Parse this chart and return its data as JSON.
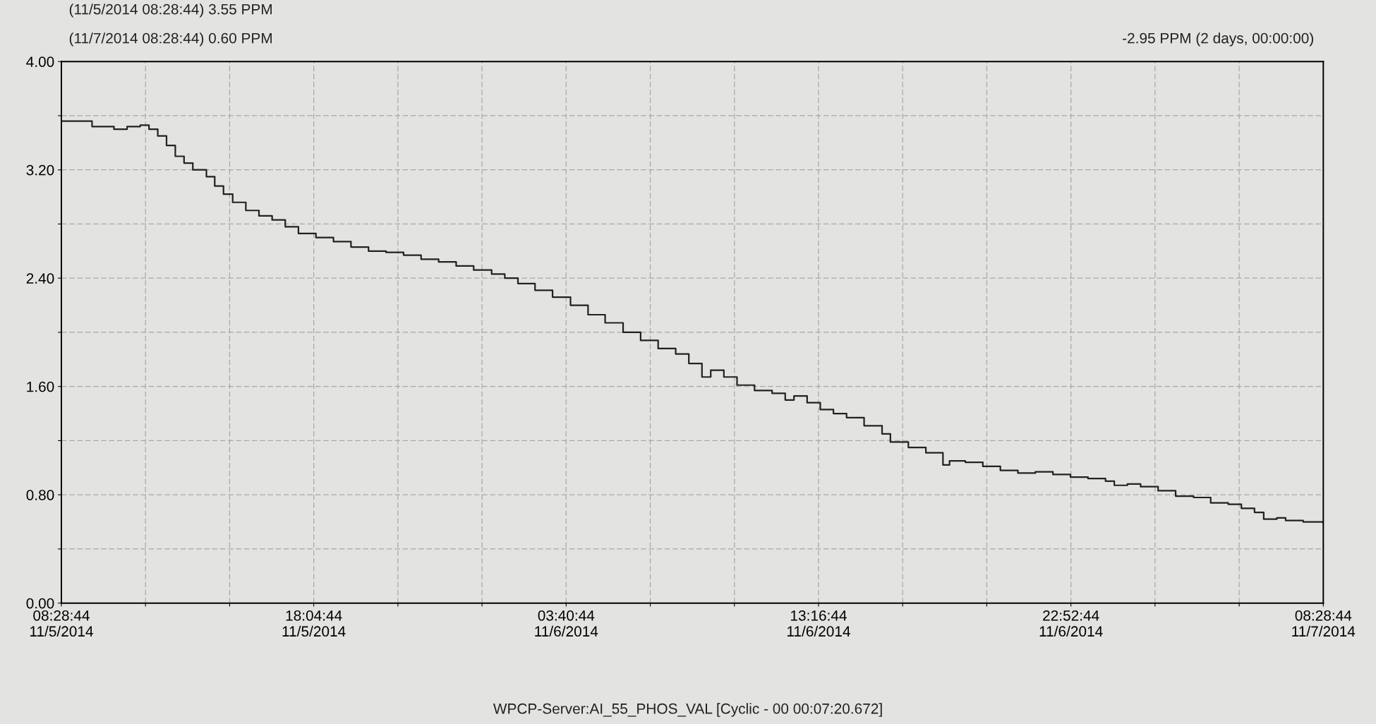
{
  "chart_data": {
    "type": "step",
    "color": "#222222",
    "x": [
      "2014-11-05T08:28",
      "2014-11-05T09:28",
      "2014-11-05T09:38",
      "2014-11-05T10:28",
      "2014-11-05T10:58",
      "2014-11-05T11:28",
      "2014-11-05T11:48",
      "2014-11-05T12:08",
      "2014-11-05T12:28",
      "2014-11-05T12:48",
      "2014-11-05T13:08",
      "2014-11-05T13:28",
      "2014-11-05T13:59",
      "2014-11-05T14:18",
      "2014-11-05T14:38",
      "2014-11-05T14:59",
      "2014-11-05T15:29",
      "2014-11-05T15:59",
      "2014-11-05T16:29",
      "2014-11-05T16:59",
      "2014-11-05T17:29",
      "2014-11-05T18:09",
      "2014-11-05T18:49",
      "2014-11-05T19:29",
      "2014-11-05T20:09",
      "2014-11-05T20:49",
      "2014-11-05T21:29",
      "2014-11-05T22:09",
      "2014-11-05T22:49",
      "2014-11-05T23:29",
      "2014-11-06T00:09",
      "2014-11-06T00:50",
      "2014-11-06T01:20",
      "2014-11-06T01:50",
      "2014-11-06T02:29",
      "2014-11-06T03:09",
      "2014-11-06T03:50",
      "2014-11-06T04:30",
      "2014-11-06T05:09",
      "2014-11-06T05:50",
      "2014-11-06T06:30",
      "2014-11-06T07:10",
      "2014-11-06T07:50",
      "2014-11-06T08:20",
      "2014-11-06T08:50",
      "2014-11-06T09:10",
      "2014-11-06T09:40",
      "2014-11-06T10:10",
      "2014-11-06T10:50",
      "2014-11-06T11:30",
      "2014-11-06T12:00",
      "2014-11-06T12:20",
      "2014-11-06T12:50",
      "2014-11-06T13:20",
      "2014-11-06T13:50",
      "2014-11-06T14:20",
      "2014-11-06T15:00",
      "2014-11-06T15:41",
      "2014-11-06T16:00",
      "2014-11-06T16:41",
      "2014-11-06T17:21",
      "2014-11-06T18:00",
      "2014-11-06T18:15",
      "2014-11-06T18:51",
      "2014-11-06T19:31",
      "2014-11-06T20:11",
      "2014-11-06T20:51",
      "2014-11-06T21:31",
      "2014-11-06T22:11",
      "2014-11-06T22:51",
      "2014-11-06T23:31",
      "2014-11-07T00:11",
      "2014-11-07T00:31",
      "2014-11-07T01:01",
      "2014-11-07T01:31",
      "2014-11-07T02:11",
      "2014-11-07T02:51",
      "2014-11-07T03:32",
      "2014-11-07T04:11",
      "2014-11-07T04:51",
      "2014-11-07T05:21",
      "2014-11-07T05:51",
      "2014-11-07T06:12",
      "2014-11-07T06:42",
      "2014-11-07T07:02",
      "2014-11-07T07:42",
      "2014-11-07T08:28"
    ],
    "values": [
      3.56,
      3.56,
      3.52,
      3.5,
      3.52,
      3.53,
      3.5,
      3.45,
      3.38,
      3.3,
      3.25,
      3.2,
      3.15,
      3.08,
      3.02,
      2.96,
      2.9,
      2.86,
      2.83,
      2.78,
      2.73,
      2.7,
      2.67,
      2.63,
      2.6,
      2.59,
      2.57,
      2.54,
      2.52,
      2.49,
      2.46,
      2.43,
      2.4,
      2.36,
      2.31,
      2.26,
      2.2,
      2.13,
      2.07,
      2.0,
      1.94,
      1.88,
      1.84,
      1.77,
      1.67,
      1.72,
      1.67,
      1.61,
      1.57,
      1.55,
      1.5,
      1.53,
      1.48,
      1.43,
      1.4,
      1.37,
      1.31,
      1.25,
      1.19,
      1.15,
      1.11,
      1.02,
      1.05,
      1.04,
      1.01,
      0.98,
      0.96,
      0.97,
      0.95,
      0.93,
      0.92,
      0.9,
      0.87,
      0.88,
      0.86,
      0.83,
      0.79,
      0.78,
      0.74,
      0.73,
      0.7,
      0.67,
      0.62,
      0.63,
      0.61,
      0.6,
      0.59
    ],
    "xlim": [
      "2014-11-05T08:28",
      "2014-11-07T08:28"
    ],
    "xticks": [
      {
        "value": "2014-11-05T08:28",
        "label": "08:28:44\n11/5/2014"
      },
      {
        "value": "2014-11-05T11:40",
        "label": null
      },
      {
        "value": "2014-11-05T14:52",
        "label": null
      },
      {
        "value": "2014-11-05T18:04",
        "label": "18:04:44\n11/5/2014"
      },
      {
        "value": "2014-11-05T21:16",
        "label": null
      },
      {
        "value": "2014-11-06T00:28",
        "label": null
      },
      {
        "value": "2014-11-06T03:40",
        "label": "03:40:44\n11/6/2014"
      },
      {
        "value": "2014-11-06T06:52",
        "label": null
      },
      {
        "value": "2014-11-06T10:04",
        "label": null
      },
      {
        "value": "2014-11-06T13:16",
        "label": "13:16:44\n11/6/2014"
      },
      {
        "value": "2014-11-06T16:28",
        "label": null
      },
      {
        "value": "2014-11-06T19:40",
        "label": null
      },
      {
        "value": "2014-11-06T22:52",
        "label": "22:52:44\n11/6/2014"
      },
      {
        "value": "2014-11-07T02:04",
        "label": null
      },
      {
        "value": "2014-11-07T05:16",
        "label": null
      },
      {
        "value": "2014-11-07T08:28",
        "label": "08:28:44\n11/7/2014"
      }
    ],
    "ylim": [
      0,
      4
    ],
    "yticks": [
      {
        "value": 0,
        "label": "0.00"
      },
      {
        "value": 0.4,
        "label": null
      },
      {
        "value": 0.8,
        "label": "0.80"
      },
      {
        "value": 1.2,
        "label": null
      },
      {
        "value": 1.6,
        "label": "1.60"
      },
      {
        "value": 2.0,
        "label": null
      },
      {
        "value": 2.4,
        "label": "2.40"
      },
      {
        "value": 2.8,
        "label": null
      },
      {
        "value": 3.2,
        "label": "3.20"
      },
      {
        "value": 3.6,
        "label": null
      },
      {
        "value": 4.0,
        "label": "4.00"
      }
    ],
    "grid": true,
    "annotations": [
      "(11/5/2014 08:28:44) 3.55 PPM",
      "(11/7/2014 08:28:44) 0.60 PPM",
      "-2.95 PPM (2 days, 00:00:00)",
      "WPCP-Server:AI_55_PHOS_VAL [Cyclic - 00 00:07:20.672]"
    ]
  }
}
